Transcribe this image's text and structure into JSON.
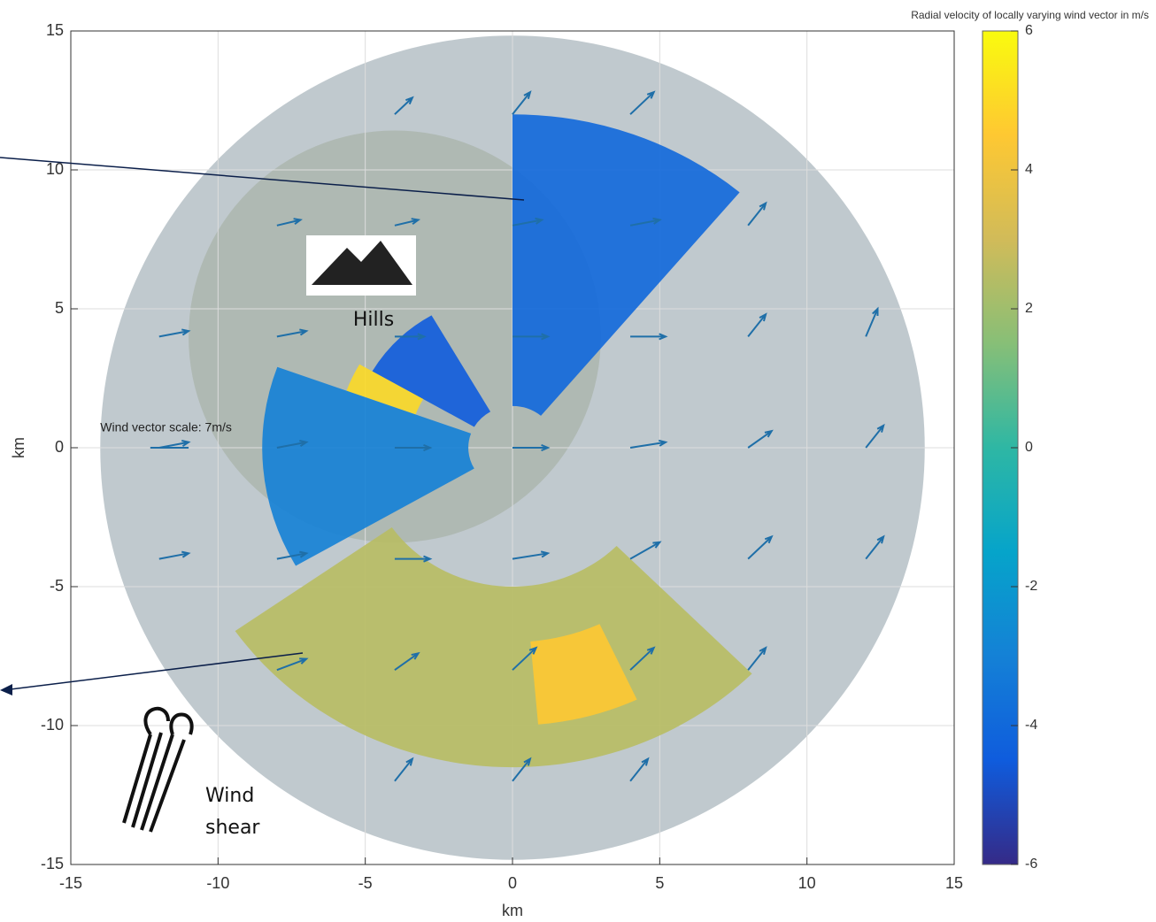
{
  "chart_data": {
    "type": "quiver",
    "xlabel": "km",
    "ylabel": "km",
    "xlim": [
      -15,
      15
    ],
    "ylim": [
      -15,
      15
    ],
    "xticks": [
      -15,
      -10,
      -5,
      0,
      5,
      10,
      15
    ],
    "yticks": [
      -15,
      -10,
      -5,
      0,
      5,
      10,
      15
    ],
    "grid": true,
    "colorbar_label": "Radial velocity of locally varying wind vector in m/s",
    "clim": [
      -6,
      6
    ],
    "cticks": [
      -6,
      -4,
      -2,
      0,
      2,
      4,
      6
    ],
    "colormap": [
      "#352a87",
      "#0f5cdd",
      "#1481d6",
      "#06a4ca",
      "#2eb7a4",
      "#87bf77",
      "#d1bb59",
      "#fec832",
      "#f9fb0e"
    ],
    "sectors": [
      {
        "start": 0,
        "end": 40,
        "rmin": 1.5,
        "rmax": 12,
        "value": -4
      },
      {
        "start": 300,
        "end": 330,
        "rmin": 1.5,
        "rmax": 5.5,
        "value": -4.5
      },
      {
        "start": 290,
        "end": 300,
        "rmin": 3.5,
        "rmax": 6,
        "value": 5
      },
      {
        "start": 240,
        "end": 290,
        "rmin": 1.5,
        "rmax": 8.5,
        "value": -3
      },
      {
        "start": 135,
        "end": 235,
        "rmin": 5,
        "rmax": 11.5,
        "value": 2.5
      },
      {
        "start": 155,
        "end": 175,
        "rmin": 7,
        "rmax": 10,
        "value": 4.5
      }
    ],
    "vectors": {
      "x": [
        -4,
        0,
        4,
        -8,
        -4,
        0,
        4,
        8,
        -12,
        -8,
        -4,
        0,
        4,
        8,
        12,
        -12,
        -8,
        -4,
        0,
        4,
        8,
        12,
        -12,
        -8,
        -4,
        0,
        4,
        8,
        12,
        -8,
        -4,
        0,
        4,
        8,
        -4,
        0,
        4
      ],
      "y": [
        12,
        12,
        12,
        8,
        8,
        8,
        8,
        8,
        4,
        4,
        4,
        4,
        4,
        4,
        4,
        0,
        0,
        0,
        0,
        0,
        0,
        0,
        -4,
        -4,
        -4,
        -4,
        -4,
        -4,
        -4,
        -8,
        -8,
        -8,
        -8,
        -8,
        -12,
        -12,
        -12
      ],
      "u": [
        3,
        3,
        4,
        4,
        4,
        5,
        5,
        3,
        5,
        5,
        5,
        6,
        6,
        3,
        2,
        5,
        5,
        6,
        6,
        6,
        4,
        3,
        5,
        5,
        6,
        6,
        5,
        4,
        3,
        5,
        4,
        4,
        4,
        3,
        3,
        3,
        3
      ],
      "v": [
        3,
        4,
        4,
        1,
        1,
        1,
        1,
        4,
        1,
        1,
        0,
        0,
        0,
        4,
        5,
        1,
        1,
        0,
        0,
        1,
        3,
        4,
        1,
        1,
        0,
        1,
        3,
        4,
        4,
        2,
        3,
        4,
        4,
        4,
        4,
        4,
        4
      ]
    },
    "scale_label": "Wind vector scale: 7m/s",
    "annotations": [
      "Hills",
      "Wind",
      "shear"
    ]
  }
}
